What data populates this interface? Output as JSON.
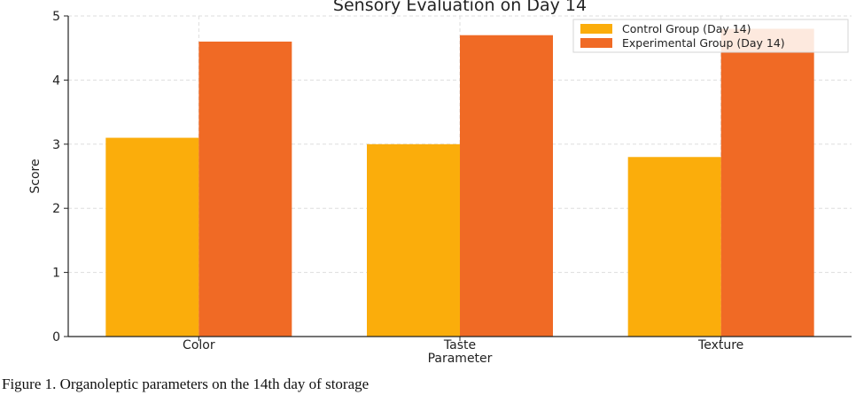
{
  "chart_data": {
    "type": "bar",
    "title": "Sensory Evaluation on Day 14",
    "xlabel": "Parameter",
    "ylabel": "Score",
    "categories": [
      "Color",
      "Taste",
      "Texture"
    ],
    "series": [
      {
        "name": "Control Group (Day 14)",
        "color": "#FBAD0B",
        "values": [
          3.1,
          3.0,
          2.8
        ]
      },
      {
        "name": "Experimental Group (Day 14)",
        "color": "#F06A25",
        "values": [
          4.6,
          4.7,
          4.8
        ]
      }
    ],
    "ylim": [
      0,
      5
    ],
    "yticks": [
      0,
      1,
      2,
      3,
      4,
      5
    ],
    "grid": true,
    "legend_position": "top-right"
  },
  "caption": "Figure 1. Organoleptic parameters on the 14th day of storage"
}
